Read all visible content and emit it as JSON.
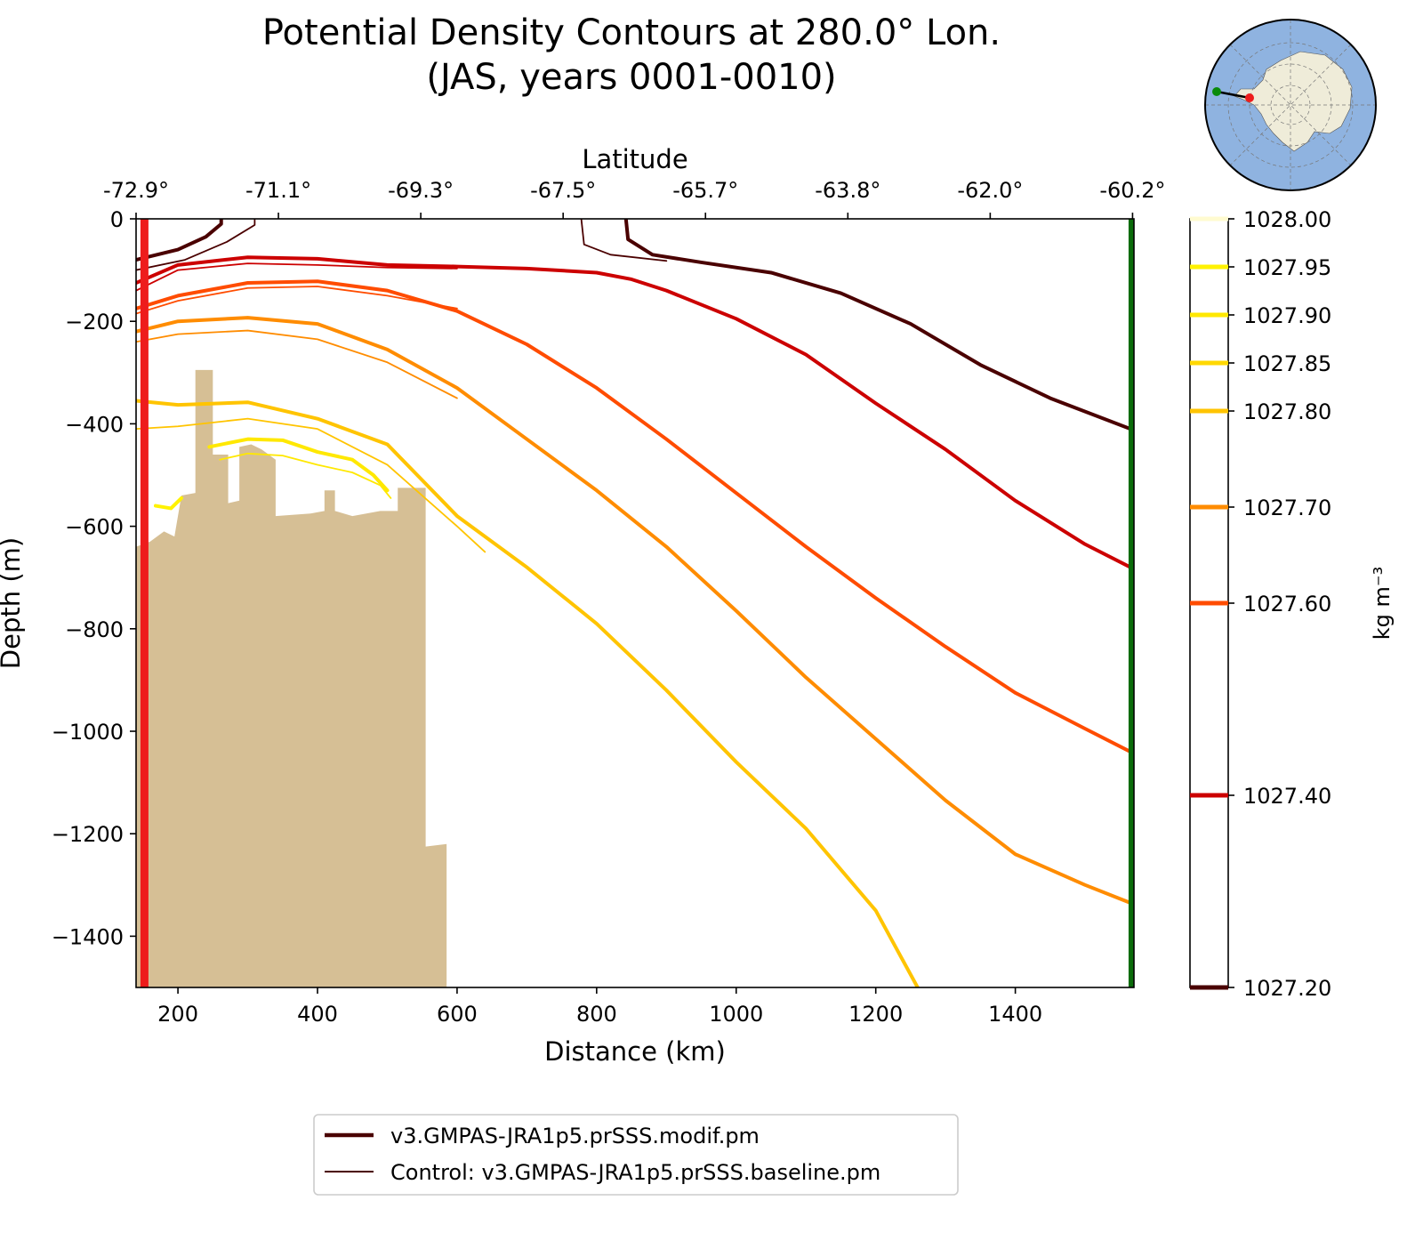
{
  "chart_data": {
    "type": "line",
    "title": "Potential Density Contours at 280.0° Lon.",
    "subtitle": "(JAS, years 0001-0010)",
    "xlabel": "Distance (km)",
    "ylabel": "Depth (m)",
    "top_xlabel": "Latitude",
    "xlim": [
      140,
      1570
    ],
    "ylim": [
      -1500,
      0
    ],
    "x_ticks": [
      200,
      400,
      600,
      800,
      1000,
      1200,
      1400
    ],
    "x_tick_labels": [
      "200",
      "400",
      "600",
      "800",
      "1000",
      "1200",
      "1400"
    ],
    "y_ticks": [
      0,
      -200,
      -400,
      -600,
      -800,
      -1000,
      -1200,
      -1400
    ],
    "y_tick_labels": [
      "0",
      "−200",
      "−400",
      "−600",
      "−800",
      "−1000",
      "−1200",
      "−1400"
    ],
    "top_ticks": [
      140,
      344,
      548,
      752,
      956,
      1160,
      1364,
      1568
    ],
    "top_tick_labels": [
      "-72.9°",
      "-71.1°",
      "-69.3°",
      "-67.5°",
      "-65.7°",
      "-63.8°",
      "-62.0°",
      "-60.2°"
    ],
    "colorbar": {
      "label": "kg m⁻³",
      "range": [
        1027.2,
        1028.0
      ],
      "levels": [
        {
          "value": 1028.0,
          "label": "1028.00",
          "color": "#fffbd0"
        },
        {
          "value": 1027.95,
          "label": "1027.95",
          "color": "#fff200"
        },
        {
          "value": 1027.9,
          "label": "1027.90",
          "color": "#ffe800"
        },
        {
          "value": 1027.85,
          "label": "1027.85",
          "color": "#ffd800"
        },
        {
          "value": 1027.8,
          "label": "1027.80",
          "color": "#ffc400"
        },
        {
          "value": 1027.7,
          "label": "1027.70",
          "color": "#ff8c00"
        },
        {
          "value": 1027.6,
          "label": "1027.60",
          "color": "#ff4c00"
        },
        {
          "value": 1027.4,
          "label": "1027.40",
          "color": "#cc0000"
        },
        {
          "value": 1027.2,
          "label": "1027.20",
          "color": "#4a0000"
        }
      ]
    },
    "series": [
      {
        "name": "1027.20",
        "run": "modif",
        "color": "#4a0000",
        "points": [
          [
            140,
            -80
          ],
          [
            200,
            -60
          ],
          [
            240,
            -35
          ],
          [
            262,
            -10
          ],
          [
            262,
            0
          ]
        ]
      },
      {
        "name": "1027.20",
        "run": "modif",
        "color": "#4a0000",
        "points": [
          [
            842,
            0
          ],
          [
            845,
            -40
          ],
          [
            880,
            -70
          ],
          [
            950,
            -85
          ],
          [
            1050,
            -105
          ],
          [
            1150,
            -145
          ],
          [
            1250,
            -205
          ],
          [
            1350,
            -285
          ],
          [
            1450,
            -350
          ],
          [
            1565,
            -410
          ]
        ]
      },
      {
        "name": "1027.20",
        "run": "control",
        "color": "#4a0000",
        "points": [
          [
            140,
            -100
          ],
          [
            210,
            -80
          ],
          [
            270,
            -45
          ],
          [
            310,
            -12
          ],
          [
            310,
            0
          ]
        ]
      },
      {
        "name": "1027.20",
        "run": "control",
        "color": "#4a0000",
        "points": [
          [
            778,
            0
          ],
          [
            782,
            -50
          ],
          [
            820,
            -70
          ],
          [
            900,
            -82
          ]
        ]
      },
      {
        "name": "1027.40",
        "run": "modif",
        "color": "#cc0000",
        "points": [
          [
            140,
            -125
          ],
          [
            200,
            -90
          ],
          [
            300,
            -75
          ],
          [
            400,
            -78
          ],
          [
            500,
            -90
          ],
          [
            600,
            -93
          ],
          [
            700,
            -97
          ],
          [
            800,
            -105
          ],
          [
            850,
            -118
          ],
          [
            900,
            -140
          ],
          [
            1000,
            -195
          ],
          [
            1100,
            -265
          ],
          [
            1200,
            -360
          ],
          [
            1300,
            -450
          ],
          [
            1400,
            -550
          ],
          [
            1500,
            -635
          ],
          [
            1565,
            -680
          ]
        ]
      },
      {
        "name": "1027.40",
        "run": "control",
        "color": "#cc0000",
        "points": [
          [
            140,
            -140
          ],
          [
            200,
            -100
          ],
          [
            300,
            -87
          ],
          [
            400,
            -90
          ],
          [
            500,
            -95
          ],
          [
            600,
            -97
          ]
        ]
      },
      {
        "name": "1027.60",
        "run": "modif",
        "color": "#ff4c00",
        "points": [
          [
            140,
            -175
          ],
          [
            200,
            -150
          ],
          [
            300,
            -125
          ],
          [
            400,
            -122
          ],
          [
            500,
            -140
          ],
          [
            600,
            -180
          ],
          [
            700,
            -245
          ],
          [
            800,
            -330
          ],
          [
            900,
            -430
          ],
          [
            1000,
            -535
          ],
          [
            1100,
            -640
          ],
          [
            1200,
            -740
          ],
          [
            1300,
            -835
          ],
          [
            1400,
            -925
          ],
          [
            1500,
            -995
          ],
          [
            1565,
            -1040
          ]
        ]
      },
      {
        "name": "1027.60",
        "run": "control",
        "color": "#ff4c00",
        "points": [
          [
            140,
            -185
          ],
          [
            200,
            -160
          ],
          [
            300,
            -135
          ],
          [
            400,
            -132
          ],
          [
            500,
            -150
          ],
          [
            600,
            -175
          ]
        ]
      },
      {
        "name": "1027.70",
        "run": "modif",
        "color": "#ff8c00",
        "points": [
          [
            140,
            -220
          ],
          [
            200,
            -200
          ],
          [
            300,
            -193
          ],
          [
            400,
            -205
          ],
          [
            500,
            -255
          ],
          [
            600,
            -330
          ],
          [
            700,
            -430
          ],
          [
            800,
            -530
          ],
          [
            900,
            -640
          ],
          [
            1000,
            -765
          ],
          [
            1100,
            -895
          ],
          [
            1200,
            -1015
          ],
          [
            1300,
            -1135
          ],
          [
            1400,
            -1240
          ],
          [
            1500,
            -1300
          ],
          [
            1565,
            -1335
          ]
        ]
      },
      {
        "name": "1027.70",
        "run": "control",
        "color": "#ff8c00",
        "points": [
          [
            140,
            -240
          ],
          [
            200,
            -225
          ],
          [
            300,
            -218
          ],
          [
            400,
            -235
          ],
          [
            500,
            -280
          ],
          [
            600,
            -350
          ]
        ]
      },
      {
        "name": "1027.80",
        "run": "modif",
        "color": "#ffc400",
        "points": [
          [
            140,
            -355
          ],
          [
            200,
            -363
          ],
          [
            300,
            -358
          ],
          [
            400,
            -390
          ],
          [
            500,
            -440
          ],
          [
            600,
            -580
          ],
          [
            700,
            -680
          ],
          [
            800,
            -790
          ],
          [
            900,
            -920
          ],
          [
            1000,
            -1060
          ],
          [
            1100,
            -1190
          ],
          [
            1200,
            -1350
          ],
          [
            1260,
            -1500
          ]
        ]
      },
      {
        "name": "1027.80",
        "run": "control",
        "color": "#ffc400",
        "points": [
          [
            140,
            -410
          ],
          [
            200,
            -405
          ],
          [
            300,
            -390
          ],
          [
            400,
            -410
          ],
          [
            500,
            -480
          ],
          [
            600,
            -600
          ],
          [
            640,
            -650
          ]
        ]
      },
      {
        "name": "1027.90",
        "run": "modif",
        "color": "#ffe800",
        "points": [
          [
            245,
            -445
          ],
          [
            300,
            -430
          ],
          [
            350,
            -432
          ],
          [
            400,
            -455
          ],
          [
            450,
            -470
          ],
          [
            480,
            -500
          ],
          [
            500,
            -530
          ]
        ]
      },
      {
        "name": "1027.90",
        "run": "control",
        "color": "#ffe800",
        "points": [
          [
            260,
            -470
          ],
          [
            300,
            -458
          ],
          [
            350,
            -462
          ],
          [
            400,
            -480
          ],
          [
            450,
            -495
          ],
          [
            490,
            -520
          ],
          [
            505,
            -545
          ]
        ]
      },
      {
        "name": "1027.95",
        "run": "modif",
        "color": "#fff200",
        "points": [
          [
            168,
            -560
          ],
          [
            190,
            -565
          ],
          [
            205,
            -545
          ]
        ]
      }
    ],
    "bathymetry": [
      [
        140,
        -640
      ],
      [
        160,
        -630
      ],
      [
        180,
        -610
      ],
      [
        195,
        -620
      ],
      [
        205,
        -540
      ],
      [
        225,
        -535
      ],
      [
        225,
        -295
      ],
      [
        250,
        -295
      ],
      [
        250,
        -460
      ],
      [
        272,
        -460
      ],
      [
        272,
        -555
      ],
      [
        288,
        -550
      ],
      [
        288,
        -445
      ],
      [
        305,
        -440
      ],
      [
        320,
        -450
      ],
      [
        340,
        -470
      ],
      [
        340,
        -580
      ],
      [
        390,
        -575
      ],
      [
        410,
        -570
      ],
      [
        410,
        -530
      ],
      [
        425,
        -530
      ],
      [
        425,
        -570
      ],
      [
        450,
        -580
      ],
      [
        470,
        -575
      ],
      [
        490,
        -570
      ],
      [
        515,
        -570
      ],
      [
        515,
        -525
      ],
      [
        555,
        -525
      ],
      [
        555,
        -1225
      ],
      [
        585,
        -1220
      ],
      [
        585,
        -1500
      ],
      [
        140,
        -1500
      ]
    ],
    "section_markers": [
      {
        "name": "start",
        "x": 152,
        "color": "#ee1c1c"
      },
      {
        "name": "end",
        "x": 1568,
        "color": "#0a6b0a"
      }
    ],
    "legend": {
      "position": "bottom-center",
      "entries": [
        {
          "label": "v3.GMPAS-JRA1p5.prSSS.modif.pm",
          "color": "#4a0000",
          "style": "thick"
        },
        {
          "label": "Control: v3.GMPAS-JRA1p5.prSSS.baseline.pm",
          "color": "#4a0000",
          "style": "thin"
        }
      ]
    },
    "inset_map": {
      "projection": "south-polar",
      "ocean_color": "#8fb3e0",
      "land_color": "#efecd9",
      "section_start_color": "#ee1c1c",
      "section_end_color": "#0a8a0a"
    }
  }
}
